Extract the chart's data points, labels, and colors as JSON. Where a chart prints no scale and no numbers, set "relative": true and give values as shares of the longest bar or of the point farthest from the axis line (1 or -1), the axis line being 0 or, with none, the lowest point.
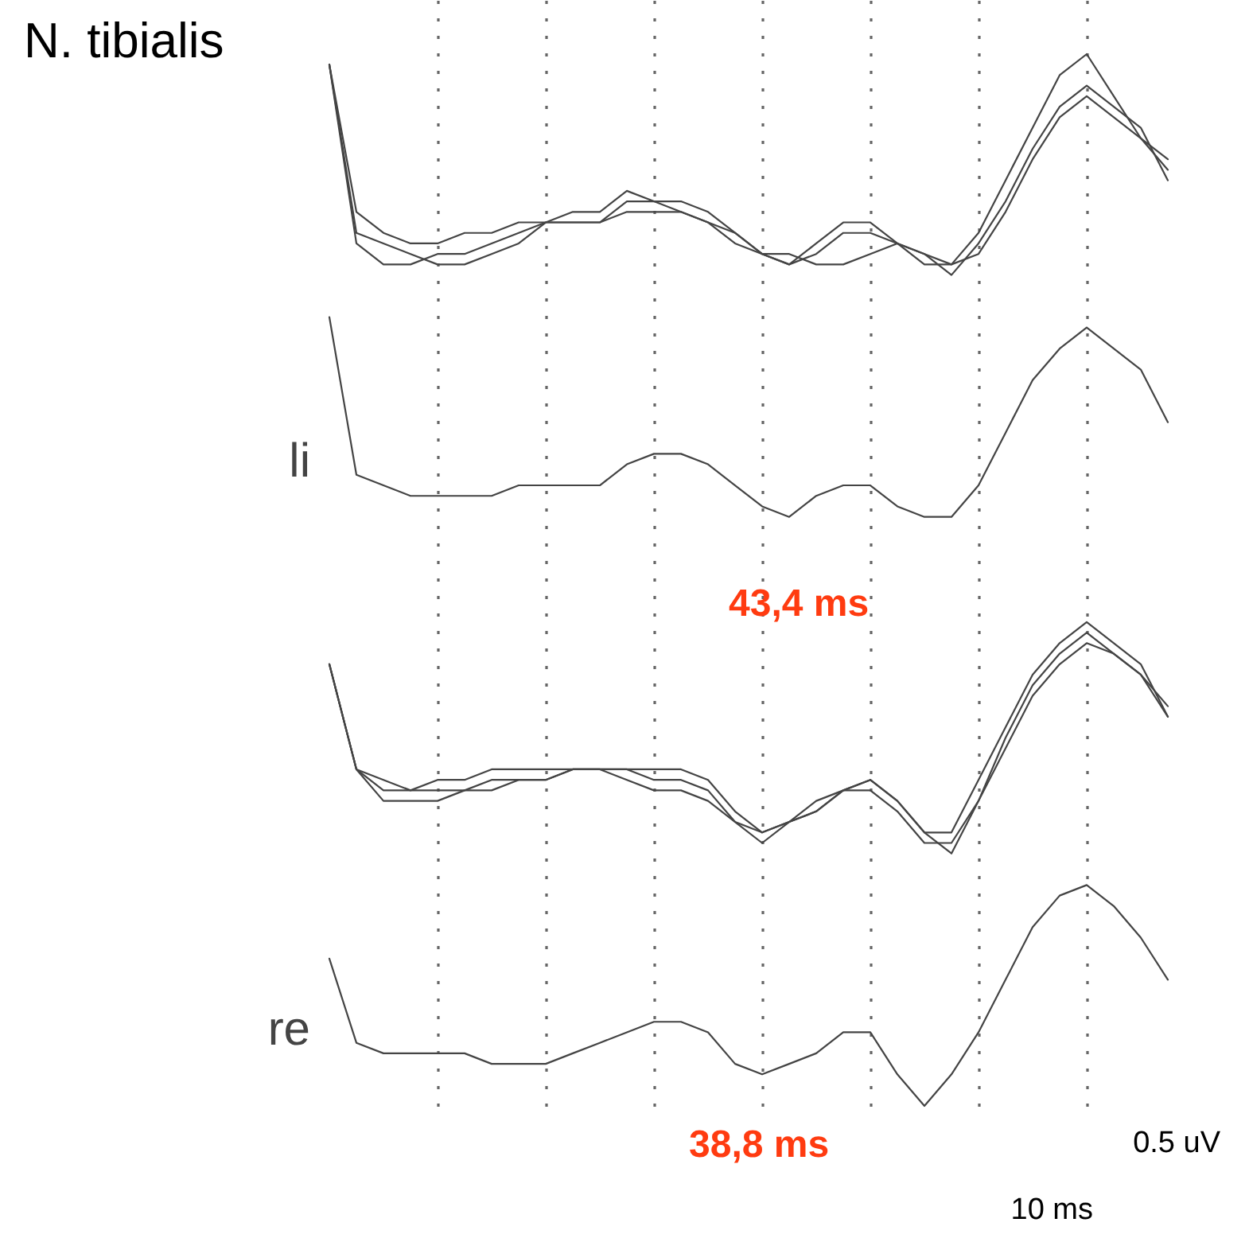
{
  "chart_data": {
    "type": "line",
    "title": "N. tibialis",
    "relative": true,
    "grid": "x",
    "line_style": "solid",
    "marker": "none",
    "categories": [
      null,
      null,
      null,
      null,
      null,
      null,
      null,
      null,
      null,
      null,
      null,
      null,
      null,
      null,
      null,
      null,
      null,
      null,
      null,
      null,
      null,
      null,
      null,
      null,
      null,
      null,
      null,
      null,
      null,
      null,
      null,
      null
    ],
    "series": [
      {
        "color": "#444444",
        "values": [
          0.99,
          0.85,
          0.83,
          0.82,
          0.82,
          0.83,
          0.83,
          0.84,
          0.84,
          0.84,
          0.84,
          0.86,
          0.86,
          0.86,
          0.85,
          0.83,
          0.81,
          0.8,
          0.82,
          0.84,
          0.84,
          0.82,
          0.8,
          0.8,
          0.83,
          0.88,
          0.93,
          0.98,
          1.0,
          0.96,
          0.92,
          0.9
        ]
      },
      {
        "color": "#444444",
        "values": [
          0.99,
          0.82,
          0.8,
          0.8,
          0.81,
          0.81,
          0.82,
          0.83,
          0.84,
          0.85,
          0.85,
          0.87,
          0.86,
          0.85,
          0.84,
          0.82,
          0.81,
          0.8,
          0.81,
          0.83,
          0.83,
          0.82,
          0.81,
          0.79,
          0.82,
          0.86,
          0.91,
          0.95,
          0.97,
          0.95,
          0.93,
          0.88
        ]
      },
      {
        "color": "#444444",
        "values": [
          0.99,
          0.83,
          0.82,
          0.81,
          0.8,
          0.8,
          0.81,
          0.82,
          0.84,
          0.84,
          0.84,
          0.85,
          0.85,
          0.85,
          0.84,
          0.83,
          0.81,
          0.81,
          0.8,
          0.8,
          0.81,
          0.82,
          0.81,
          0.8,
          0.81,
          0.85,
          0.9,
          0.94,
          0.96,
          0.94,
          0.92,
          0.89
        ]
      },
      {
        "name": "li",
        "color": "#444444",
        "values": [
          0.75,
          0.6,
          0.59,
          0.58,
          0.58,
          0.58,
          0.58,
          0.59,
          0.59,
          0.59,
          0.59,
          0.61,
          0.62,
          0.62,
          0.61,
          0.59,
          0.57,
          0.56,
          0.58,
          0.59,
          0.59,
          0.57,
          0.56,
          0.56,
          0.59,
          0.64,
          0.69,
          0.72,
          0.74,
          0.72,
          0.7,
          0.65
        ]
      },
      {
        "color": "#444444",
        "values": [
          0.42,
          0.32,
          0.3,
          0.3,
          0.3,
          0.3,
          0.31,
          0.31,
          0.31,
          0.32,
          0.32,
          0.32,
          0.32,
          0.32,
          0.31,
          0.28,
          0.26,
          0.27,
          0.29,
          0.3,
          0.31,
          0.29,
          0.26,
          0.26,
          0.31,
          0.36,
          0.41,
          0.44,
          0.46,
          0.44,
          0.42,
          0.37
        ]
      },
      {
        "color": "#444444",
        "values": [
          0.42,
          0.32,
          0.29,
          0.29,
          0.29,
          0.3,
          0.3,
          0.31,
          0.31,
          0.32,
          0.32,
          0.32,
          0.31,
          0.31,
          0.3,
          0.27,
          0.25,
          0.27,
          0.28,
          0.3,
          0.31,
          0.29,
          0.26,
          0.24,
          0.29,
          0.34,
          0.39,
          0.42,
          0.44,
          0.43,
          0.41,
          0.37
        ]
      },
      {
        "color": "#444444",
        "values": [
          0.42,
          0.32,
          0.31,
          0.3,
          0.31,
          0.31,
          0.32,
          0.32,
          0.32,
          0.32,
          0.32,
          0.31,
          0.3,
          0.3,
          0.29,
          0.27,
          0.26,
          0.27,
          0.28,
          0.3,
          0.3,
          0.28,
          0.25,
          0.25,
          0.29,
          0.35,
          0.4,
          0.43,
          0.45,
          0.43,
          0.41,
          0.38
        ]
      },
      {
        "name": "re",
        "color": "#444444",
        "values": [
          0.14,
          0.06,
          0.05,
          0.05,
          0.05,
          0.05,
          0.04,
          0.04,
          0.04,
          0.05,
          0.06,
          0.07,
          0.08,
          0.08,
          0.07,
          0.04,
          0.03,
          0.04,
          0.05,
          0.07,
          0.07,
          0.03,
          0.0,
          0.03,
          0.07,
          0.12,
          0.17,
          0.2,
          0.21,
          0.19,
          0.16,
          0.12
        ]
      }
    ],
    "annotations": [
      "43,4 ms",
      "38,8 ms",
      "0.5 uV",
      "10 ms"
    ]
  }
}
